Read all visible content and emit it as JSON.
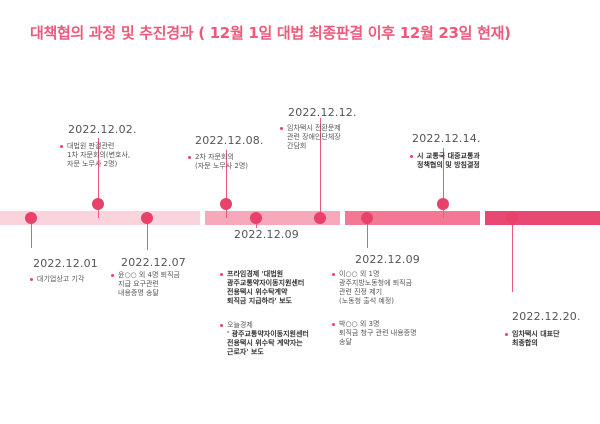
{
  "title": "대책협의 과정 및 추진경과 ( 12월 1일 대법 최종판결 이후 12월 23일 현재)",
  "colors": {
    "accent": "#e8416a",
    "title": "#ee5a7c",
    "band_1": "#fbd3dc",
    "band_2": "#f7a8bb",
    "band_3": "#f27896",
    "band_4": "#e94872"
  },
  "events": {
    "e1201": {
      "date": "2022.12.01",
      "notes": [
        [
          "대기업상고 기각"
        ]
      ]
    },
    "e1202": {
      "date": "2022.12.02.",
      "notes": [
        [
          "대법원 판결관련",
          "1차 자문회의(변호사,",
          "자문 노무사 2명)"
        ]
      ]
    },
    "e1207": {
      "date": "2022.12.07",
      "notes": [
        [
          "윤○○ 외 4명 퇴직금",
          "지급 요구관련",
          "내용증명 송달"
        ]
      ]
    },
    "e1208": {
      "date": "2022.12.08.",
      "notes": [
        [
          "2차 자문회의",
          "(자문 노무사 2명)"
        ]
      ]
    },
    "e1209a": {
      "date": "2022.12.09",
      "notes": [
        [
          "프라임경제 '대법원",
          "광주교통약자이동지원센터",
          "전용택시 위수탁계약",
          "퇴직금 지급하라' 보도"
        ],
        [
          "오늘경제",
          "' 광주교통약자이동지원센터",
          "전용택시 위수탁 계약자는",
          "근로자' 보도"
        ]
      ]
    },
    "e1212": {
      "date": "2022.12.12.",
      "notes": [
        [
          "임차택시 전환문제",
          "관련 장애인단체장",
          "간담회"
        ]
      ]
    },
    "e1209b": {
      "date": "2022.12.09",
      "notes": [
        [
          "이○○ 외 1명",
          "광주지방노동청에 퇴직금",
          "관련 진정 제기",
          "(노동청 출석 예정)"
        ],
        [
          "박○○ 외 3명",
          "퇴직금 청구 관련 내용증명",
          "송달"
        ]
      ]
    },
    "e1214": {
      "date": "2022.12.14.",
      "notes": [
        [
          "시 교통국 대중교통과",
          "정책협의 및 방침결정"
        ]
      ]
    },
    "e1220": {
      "date": "2022.12.20.",
      "notes": [
        [
          "임차택시 대표단",
          "최종합의"
        ]
      ]
    }
  }
}
